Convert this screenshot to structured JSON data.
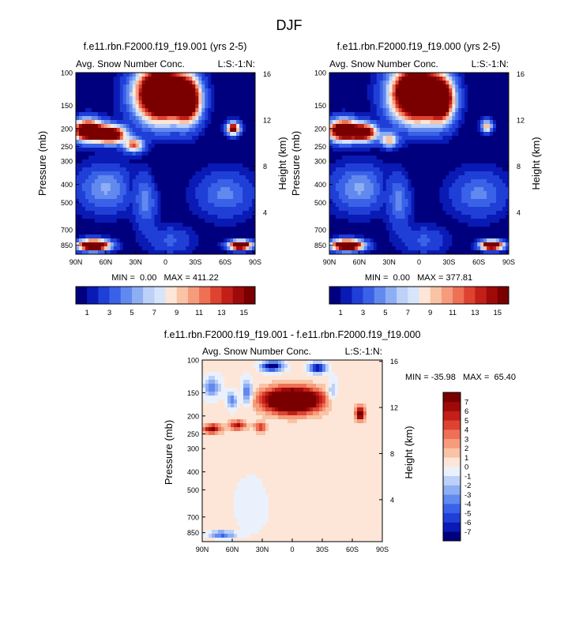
{
  "figure_title": "DJF",
  "colors": {
    "div15": [
      "#00007f",
      "#0a1ab5",
      "#1f3fd6",
      "#3a62e8",
      "#6289ee",
      "#8eaef3",
      "#bcd0f8",
      "#eaf1fc",
      "#fde6d7",
      "#f9c3a6",
      "#f59c7d",
      "#ee7055",
      "#dd4330",
      "#c21f18",
      "#9e0a0a",
      "#7a0000"
    ],
    "div16": [
      "#00007f",
      "#0a1ab5",
      "#1f3fd6",
      "#3a62e8",
      "#6289ee",
      "#8eaef3",
      "#bcd0f8",
      "#d6e5fa",
      "#fde6d7",
      "#f9c3a6",
      "#f59c7d",
      "#ee7055",
      "#dd4330",
      "#c21f18",
      "#9e0a0a",
      "#7a0000"
    ]
  },
  "chart_data": [
    {
      "type": "heatmap",
      "title": "f.e11.rbn.F2000.f19_f19.001 (yrs 2-5)",
      "left_label": "Avg. Snow Number Conc.",
      "right_label": "L:S:-1:N:",
      "ylabel": "Pressure (mb)",
      "ylabel_right": "Height (km)",
      "x_ticks": [
        "90N",
        "60N",
        "30N",
        "0",
        "30S",
        "60S",
        "90S"
      ],
      "x_range": [
        90,
        -90
      ],
      "y_ticks": [
        "100",
        "150",
        "200",
        "250",
        "300",
        "400",
        "500",
        "700",
        "850"
      ],
      "y_tick_values": [
        100,
        150,
        200,
        250,
        300,
        400,
        500,
        700,
        850
      ],
      "y_range": [
        100,
        950
      ],
      "height_ticks": [
        "16",
        "12",
        "8",
        "4"
      ],
      "height_tick_values": [
        16,
        12,
        8,
        4
      ],
      "stats": "MIN =  0.00   MAX = 411.22",
      "colorbar_labels": [
        "1",
        "3",
        "5",
        "7",
        "9",
        "11",
        "13",
        "15"
      ],
      "contour_levels": [
        0.5,
        1,
        2,
        3,
        4,
        5,
        6,
        7,
        8,
        9,
        10,
        11,
        12,
        13,
        14,
        15
      ],
      "features": [
        {
          "lat": 78,
          "p": 205,
          "amp": 22,
          "wlat": 14,
          "wlogp": 0.12
        },
        {
          "lat": 55,
          "p": 215,
          "amp": 20,
          "wlat": 14,
          "wlogp": 0.1
        },
        {
          "lat": 32,
          "p": 245,
          "amp": 11,
          "wlat": 9,
          "wlogp": 0.08
        },
        {
          "lat": 5,
          "p": 130,
          "amp": 30,
          "wlat": 22,
          "wlogp": 0.3
        },
        {
          "lat": -22,
          "p": 140,
          "amp": 22,
          "wlat": 12,
          "wlogp": 0.25
        },
        {
          "lat": -68,
          "p": 200,
          "amp": 16,
          "wlat": 6,
          "wlogp": 0.07
        },
        {
          "lat": 72,
          "p": 850,
          "amp": 26,
          "wlat": 14,
          "wlogp": 0.06
        },
        {
          "lat": -75,
          "p": 850,
          "amp": 24,
          "wlat": 10,
          "wlogp": 0.05
        },
        {
          "lat": 60,
          "p": 420,
          "amp": 4,
          "wlat": 25,
          "wlogp": 0.25
        },
        {
          "lat": -60,
          "p": 450,
          "amp": 3,
          "wlat": 25,
          "wlogp": 0.25
        },
        {
          "lat": 20,
          "p": 500,
          "amp": 3,
          "wlat": 10,
          "wlogp": 0.3
        },
        {
          "lat": -5,
          "p": 800,
          "amp": 2,
          "wlat": 20,
          "wlogp": 0.15
        }
      ],
      "holes": [
        {
          "lat": 5,
          "p": 330,
          "amp": 1.4,
          "wlat": 9,
          "wlogp": 0.22
        },
        {
          "lat": 35,
          "p": 420,
          "amp": 0.8,
          "wlat": 6,
          "wlogp": 0.25
        }
      ]
    },
    {
      "type": "heatmap",
      "title": "f.e11.rbn.F2000.f19_f19.000 (yrs 2-5)",
      "left_label": "Avg. Snow Number Conc.",
      "right_label": "L:S:-1:N:",
      "ylabel": "Pressure (mb)",
      "ylabel_right": "Height (km)",
      "x_ticks": [
        "90N",
        "60N",
        "30N",
        "0",
        "30S",
        "60S",
        "90S"
      ],
      "x_range": [
        90,
        -90
      ],
      "y_ticks": [
        "100",
        "150",
        "200",
        "250",
        "300",
        "400",
        "500",
        "700",
        "850"
      ],
      "y_tick_values": [
        100,
        150,
        200,
        250,
        300,
        400,
        500,
        700,
        850
      ],
      "y_range": [
        100,
        950
      ],
      "height_ticks": [
        "16",
        "12",
        "8",
        "4"
      ],
      "height_tick_values": [
        16,
        12,
        8,
        4
      ],
      "stats": "MIN =  0.00   MAX = 377.81",
      "colorbar_labels": [
        "1",
        "3",
        "5",
        "7",
        "9",
        "11",
        "13",
        "15"
      ],
      "contour_levels": [
        0.5,
        1,
        2,
        3,
        4,
        5,
        6,
        7,
        8,
        9,
        10,
        11,
        12,
        13,
        14,
        15
      ],
      "features": [
        {
          "lat": 76,
          "p": 205,
          "amp": 22,
          "wlat": 14,
          "wlogp": 0.12
        },
        {
          "lat": 55,
          "p": 210,
          "amp": 18,
          "wlat": 12,
          "wlogp": 0.1
        },
        {
          "lat": 30,
          "p": 230,
          "amp": 9,
          "wlat": 8,
          "wlogp": 0.08
        },
        {
          "lat": 3,
          "p": 130,
          "amp": 30,
          "wlat": 22,
          "wlogp": 0.3
        },
        {
          "lat": -22,
          "p": 140,
          "amp": 20,
          "wlat": 12,
          "wlogp": 0.25
        },
        {
          "lat": -68,
          "p": 195,
          "amp": 9,
          "wlat": 5,
          "wlogp": 0.07
        },
        {
          "lat": 72,
          "p": 850,
          "amp": 26,
          "wlat": 14,
          "wlogp": 0.06
        },
        {
          "lat": -73,
          "p": 850,
          "amp": 24,
          "wlat": 10,
          "wlogp": 0.05
        },
        {
          "lat": 60,
          "p": 420,
          "amp": 4,
          "wlat": 25,
          "wlogp": 0.25
        },
        {
          "lat": -60,
          "p": 450,
          "amp": 3,
          "wlat": 25,
          "wlogp": 0.25
        },
        {
          "lat": 20,
          "p": 500,
          "amp": 3,
          "wlat": 10,
          "wlogp": 0.3
        },
        {
          "lat": -5,
          "p": 800,
          "amp": 2,
          "wlat": 20,
          "wlogp": 0.15
        }
      ],
      "holes": [
        {
          "lat": 2,
          "p": 320,
          "amp": 1.4,
          "wlat": 9,
          "wlogp": 0.22
        },
        {
          "lat": 35,
          "p": 420,
          "amp": 0.8,
          "wlat": 6,
          "wlogp": 0.25
        }
      ]
    },
    {
      "type": "heatmap",
      "title": "f.e11.rbn.F2000.f19_f19.001 - f.e11.rbn.F2000.f19_f19.000",
      "left_label": "Avg. Snow Number Conc.",
      "right_label": "L:S:-1:N:",
      "ylabel": "Pressure (mb)",
      "ylabel_right": "Height (km)",
      "x_ticks": [
        "90N",
        "60N",
        "30N",
        "0",
        "30S",
        "60S",
        "90S"
      ],
      "x_range": [
        90,
        -90
      ],
      "y_ticks": [
        "100",
        "150",
        "200",
        "250",
        "300",
        "400",
        "500",
        "700",
        "850"
      ],
      "y_tick_values": [
        100,
        150,
        200,
        250,
        300,
        400,
        500,
        700,
        850
      ],
      "y_range": [
        100,
        950
      ],
      "height_ticks": [
        "16",
        "12",
        "8",
        "4"
      ],
      "height_tick_values": [
        16,
        12,
        8,
        4
      ],
      "stats": "MIN = -35.98   MAX =  65.40",
      "colorbar_labels": [
        "7",
        "6",
        "5",
        "4",
        "3",
        "2",
        "1",
        "0",
        "-1",
        "-2",
        "-3",
        "-4",
        "-5",
        "-6",
        "-7"
      ],
      "contour_levels": [
        -7,
        -6,
        -5,
        -4,
        -3,
        -2,
        -1,
        0,
        1,
        2,
        3,
        4,
        5,
        6,
        7
      ],
      "features": [
        {
          "lat": 0,
          "p": 165,
          "amp": 15,
          "wlat": 28,
          "wlogp": 0.15
        },
        {
          "lat": 80,
          "p": 235,
          "amp": 7,
          "wlat": 9,
          "wlogp": 0.06
        },
        {
          "lat": 55,
          "p": 225,
          "amp": 6,
          "wlat": 9,
          "wlogp": 0.06
        },
        {
          "lat": 32,
          "p": 230,
          "amp": 5,
          "wlat": 6,
          "wlogp": 0.06
        },
        {
          "lat": -68,
          "p": 195,
          "amp": 8,
          "wlat": 5,
          "wlogp": 0.09
        },
        {
          "lat": 20,
          "p": 108,
          "amp": -9,
          "wlat": 10,
          "wlogp": 0.06
        },
        {
          "lat": -25,
          "p": 110,
          "amp": -8,
          "wlat": 8,
          "wlogp": 0.06
        },
        {
          "lat": 80,
          "p": 140,
          "amp": -4,
          "wlat": 8,
          "wlogp": 0.12
        },
        {
          "lat": 60,
          "p": 165,
          "amp": -4,
          "wlat": 5,
          "wlogp": 0.1
        },
        {
          "lat": 45,
          "p": 150,
          "amp": -5,
          "wlat": 5,
          "wlogp": 0.15
        },
        {
          "lat": -40,
          "p": 150,
          "amp": -3,
          "wlat": 5,
          "wlogp": 0.15
        },
        {
          "lat": 70,
          "p": 870,
          "amp": -5,
          "wlat": 12,
          "wlogp": 0.04
        },
        {
          "lat": 40,
          "p": 600,
          "amp": -0.6,
          "wlat": 20,
          "wlogp": 0.4
        },
        {
          "lat": -20,
          "p": 500,
          "amp": 0.6,
          "wlat": 30,
          "wlogp": 0.4
        }
      ],
      "holes": []
    }
  ]
}
